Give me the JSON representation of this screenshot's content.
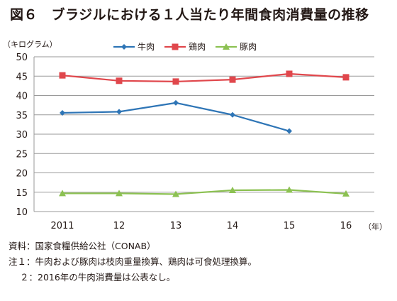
{
  "title": "図６　ブラジルにおける１人当たり年間食肉消費量の推移",
  "chart_data": {
    "type": "line",
    "ylabel": "（キログラム）",
    "xlabel": "（年）",
    "ylim": [
      10,
      50
    ],
    "yticks": [
      10,
      15,
      20,
      25,
      30,
      35,
      40,
      45,
      50
    ],
    "categories": [
      "2011",
      "12",
      "13",
      "14",
      "15",
      "16"
    ],
    "grid": true,
    "legend_position": "top-center",
    "series": [
      {
        "name": "牛肉",
        "color": "#2e75b6",
        "marker": "diamond",
        "values": [
          35.5,
          35.8,
          38.1,
          35.0,
          30.8,
          null
        ]
      },
      {
        "name": "鶏肉",
        "color": "#e0474c",
        "marker": "square",
        "values": [
          45.2,
          43.8,
          43.6,
          44.1,
          45.6,
          44.7
        ]
      },
      {
        "name": "豚肉",
        "color": "#8cc152",
        "marker": "triangle",
        "values": [
          14.7,
          14.7,
          14.5,
          15.5,
          15.6,
          14.6
        ]
      }
    ]
  },
  "notes": [
    "資料：国家食糧供給公社（CONAB）",
    "注１：牛肉および豚肉は枝肉重量換算、鶏肉は可食処理換算。",
    "２：2016年の牛肉消費量は公表なし。"
  ]
}
